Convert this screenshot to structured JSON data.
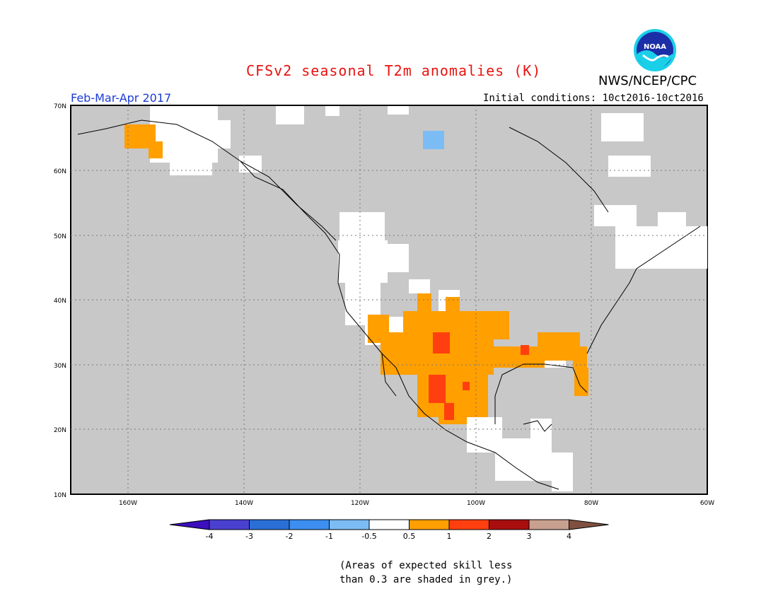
{
  "header": {
    "title": "CFSv2 seasonal T2m anomalies (K)",
    "org": "NWS/NCEP/CPC",
    "period": "Feb-Mar-Apr 2017",
    "initial_conditions": "Initial conditions: 10ct2016-10ct2016",
    "logo_text": "NOAA"
  },
  "map": {
    "lat_labels": [
      "70N",
      "60N",
      "50N",
      "40N",
      "30N",
      "20N",
      "10N"
    ],
    "lon_labels": [
      "160W",
      "140W",
      "120W",
      "100W",
      "80W",
      "60W"
    ],
    "lat_range": [
      10,
      70
    ],
    "lon_range": [
      -170,
      -60
    ],
    "background_color": "#c8c8c8"
  },
  "colorbar": {
    "tick_labels": [
      "-4",
      "-3",
      "-2",
      "-1",
      "-0.5",
      "0.5",
      "1",
      "2",
      "3",
      "4"
    ],
    "colors": [
      "#3b0fbd",
      "#4a40d0",
      "#2a6fd6",
      "#3c8ff0",
      "#7cbcf5",
      "#ffffff",
      "#ff9f00",
      "#ff3f0f",
      "#a80e0e",
      "#c8a090",
      "#7f5040"
    ]
  },
  "note": {
    "line1": "(Areas of expected skill less",
    "line2": "than 0.3 are shaded in grey.)"
  }
}
